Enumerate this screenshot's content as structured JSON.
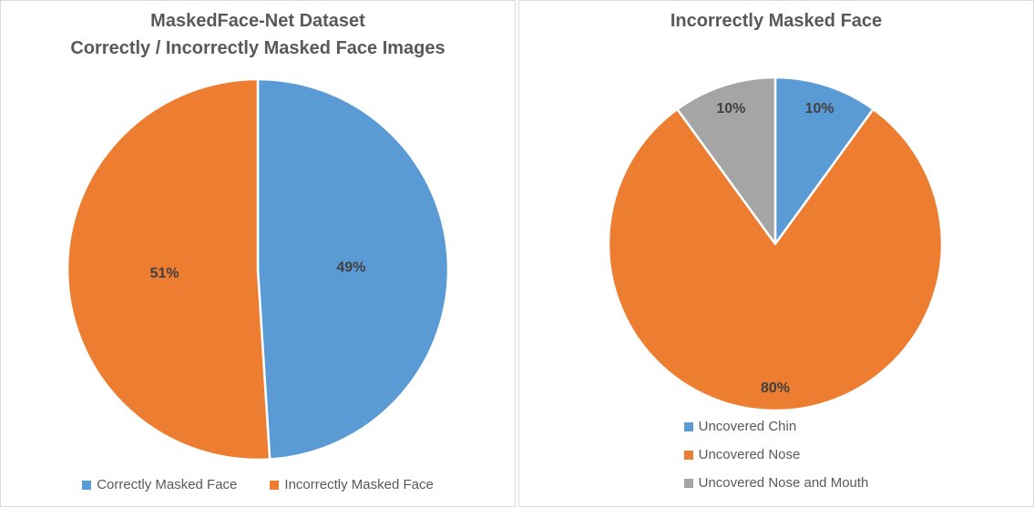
{
  "figure": {
    "background_color": "#FFFFFF",
    "panel_border_color": "#D9D9D9",
    "title_color": "#595959",
    "legend_text_color": "#595959",
    "data_label_color": "#404040",
    "slice_separator_color": "#FFFFFF"
  },
  "chart_data": [
    {
      "type": "pie",
      "title": "MaskedFace-Net Dataset\nCorrectly / Incorrectly Masked Face Images",
      "categories": [
        "Correctly Masked Face",
        "Incorrectly Masked Face"
      ],
      "values": [
        49,
        51
      ],
      "data_labels": [
        "49%",
        "51%"
      ],
      "colors": [
        "#5B9BD5",
        "#ED7D31"
      ],
      "start_angle_deg": 0,
      "direction": "clockwise",
      "legend_position": "bottom",
      "legend_layout": "horizontal",
      "label_distance_fraction": 0.49
    },
    {
      "type": "pie",
      "title": "Incorrectly Masked Face",
      "categories": [
        "Uncovered Chin",
        "Uncovered Nose",
        "Uncovered Nose and Mouth"
      ],
      "values": [
        10,
        80,
        10
      ],
      "data_labels": [
        "10%",
        "80%",
        "10%"
      ],
      "colors": [
        "#5B9BD5",
        "#ED7D31",
        "#A5A5A5"
      ],
      "start_angle_deg": 0,
      "direction": "clockwise",
      "legend_position": "bottom",
      "legend_layout": "vertical",
      "label_distance_fraction": 0.86
    }
  ]
}
